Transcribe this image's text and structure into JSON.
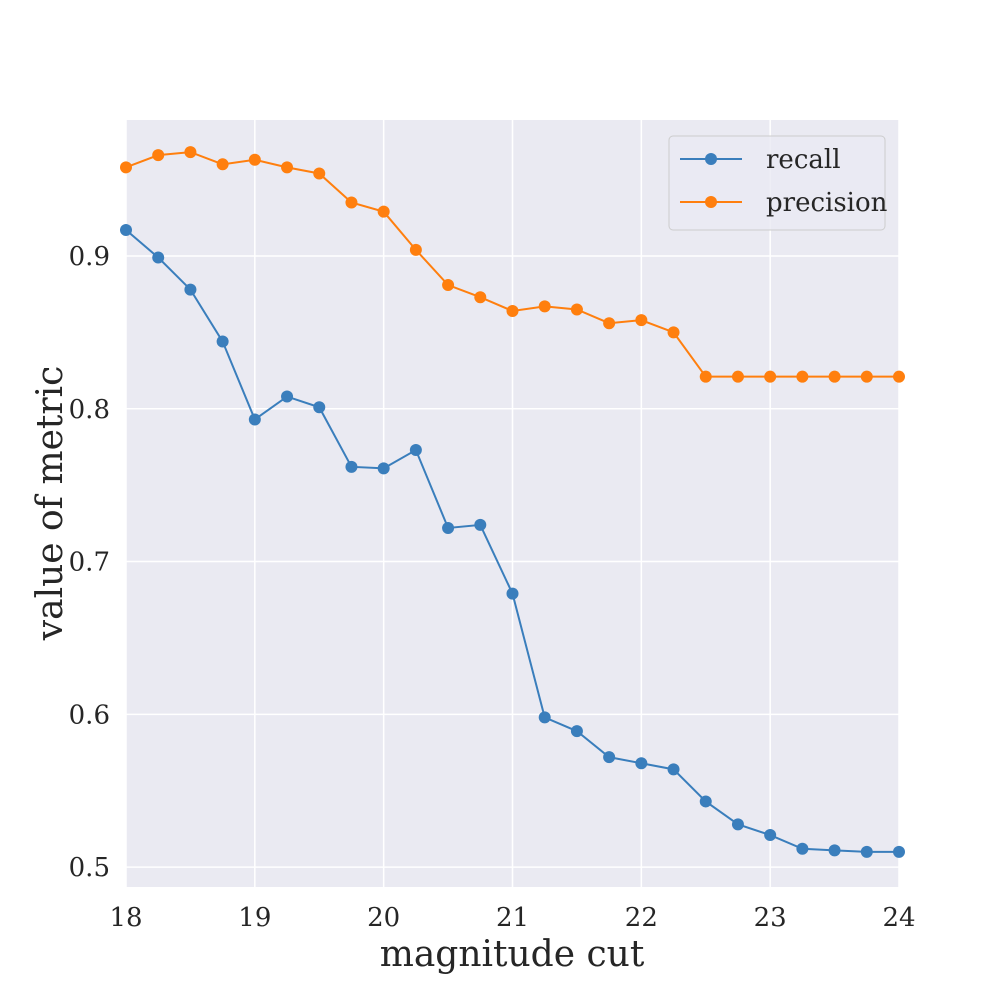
{
  "chart_data": {
    "type": "line",
    "title": "",
    "xlabel": "magnitude cut",
    "ylabel": "value of metric",
    "xlim": [
      18,
      24
    ],
    "ylim": [
      0.487,
      0.989
    ],
    "xticks": [
      18,
      19,
      20,
      21,
      22,
      23,
      24
    ],
    "yticks": [
      0.5,
      0.6,
      0.7,
      0.8,
      0.9
    ],
    "xtick_labels": [
      "18",
      "19",
      "20",
      "21",
      "22",
      "23",
      "24"
    ],
    "ytick_labels": [
      "0.5",
      "0.6",
      "0.7",
      "0.8",
      "0.9"
    ],
    "grid": true,
    "legend_position": "top-right",
    "x": [
      18.0,
      18.25,
      18.5,
      18.75,
      19.0,
      19.25,
      19.5,
      19.75,
      20.0,
      20.25,
      20.5,
      20.75,
      21.0,
      21.25,
      21.5,
      21.75,
      22.0,
      22.25,
      22.5,
      22.75,
      23.0,
      23.25,
      23.5,
      23.75,
      24.0
    ],
    "series": [
      {
        "name": "recall",
        "color": "#3a7ebc",
        "values": [
          0.917,
          0.899,
          0.878,
          0.844,
          0.793,
          0.808,
          0.801,
          0.762,
          0.761,
          0.773,
          0.722,
          0.724,
          0.679,
          0.598,
          0.589,
          0.572,
          0.568,
          0.564,
          0.543,
          0.528,
          0.521,
          0.512,
          0.511,
          0.51,
          0.51
        ]
      },
      {
        "name": "precision",
        "color": "#ff7f0e",
        "values": [
          0.958,
          0.966,
          0.968,
          0.96,
          0.963,
          0.958,
          0.954,
          0.935,
          0.929,
          0.904,
          0.881,
          0.873,
          0.864,
          0.867,
          0.865,
          0.856,
          0.858,
          0.85,
          0.821,
          0.821,
          0.821,
          0.821,
          0.821,
          0.821,
          0.821
        ]
      }
    ]
  }
}
